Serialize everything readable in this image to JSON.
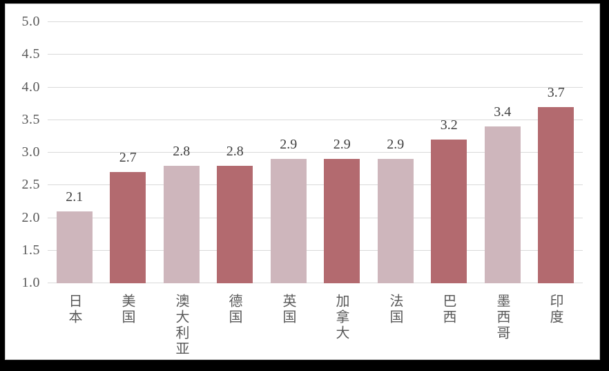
{
  "chart_data": {
    "type": "bar",
    "title": "",
    "xlabel": "",
    "ylabel": "",
    "categories": [
      "日本",
      "美国",
      "澳大利亚",
      "德国",
      "英国",
      "加拿大",
      "法国",
      "巴西",
      "墨西哥",
      "印度"
    ],
    "values": [
      2.1,
      2.7,
      2.8,
      2.8,
      2.9,
      2.9,
      2.9,
      3.2,
      3.4,
      3.7
    ],
    "value_labels": [
      "2.1",
      "2.7",
      "2.8",
      "2.8",
      "2.9",
      "2.9",
      "2.9",
      "3.2",
      "3.4",
      "3.7"
    ],
    "bar_shades": [
      "light",
      "dark",
      "light",
      "dark",
      "light",
      "dark",
      "light",
      "dark",
      "light",
      "dark"
    ],
    "palette": {
      "light": "#ceb6bc",
      "dark": "#b36a6f"
    },
    "ylim": [
      1.0,
      5.0
    ],
    "y_tick_step": 0.5,
    "y_ticks": [
      "5.0",
      "4.5",
      "4.0",
      "3.5",
      "3.0",
      "2.5",
      "2.0",
      "1.5",
      "1.0"
    ],
    "grid": "horizontal-only",
    "legend": "none",
    "data_labels": "above-bars",
    "category_label_orientation": "vertical-upright",
    "colors": {
      "gridline": "#d9d9d9",
      "axis_tick_label": "#595959",
      "category_label": "#595959",
      "value_label": "#3f3f3f",
      "chart_background": "#ffffff",
      "chart_border": "#c6c6c6",
      "outer_frame": "#000000"
    }
  }
}
